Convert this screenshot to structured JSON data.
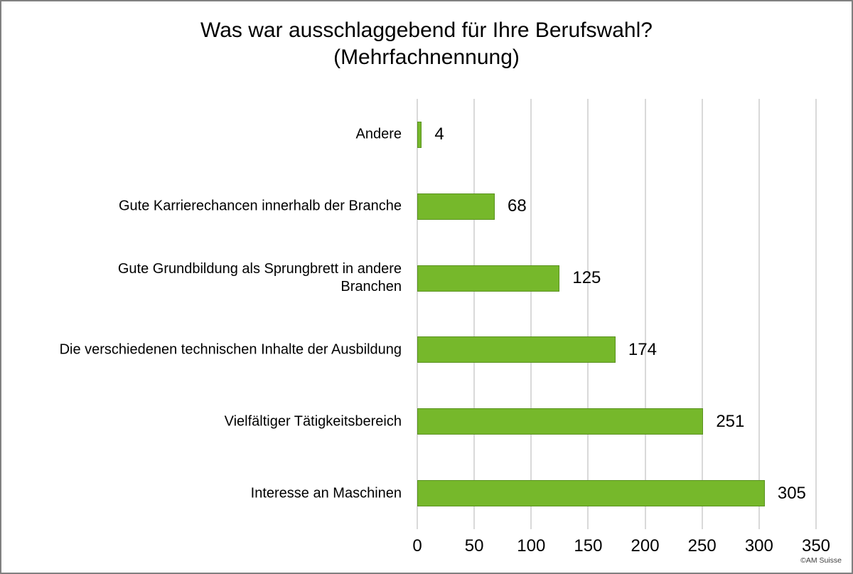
{
  "page": {
    "background": "#ffffff",
    "border_color": "#808080",
    "attribution": "©AM Suisse"
  },
  "chart_data": {
    "type": "bar",
    "orientation": "horizontal",
    "title": "Was war ausschlaggebend für Ihre Berufswahl?",
    "subtitle": "(Mehrfachnennung)",
    "categories": [
      "Andere",
      "Gute Karrierechancen innerhalb der Branche",
      "Gute Grundbildung als Sprungbrett in andere Branchen",
      "Die verschiedenen technischen Inhalte der Ausbildung",
      "Vielfältiger Tätigkeitsbereich",
      "Interesse an Maschinen"
    ],
    "category_lines": [
      [
        "Andere"
      ],
      [
        "Gute Karrierechancen innerhalb der Branche"
      ],
      [
        "Gute Grundbildung als Sprungbrett in andere",
        "Branchen"
      ],
      [
        "Die verschiedenen technischen Inhalte der Ausbildung"
      ],
      [
        "Vielfältiger Tätigkeitsbereich"
      ],
      [
        "Interesse an Maschinen"
      ]
    ],
    "values": [
      4,
      68,
      125,
      174,
      251,
      305
    ],
    "x_ticks": [
      0,
      50,
      100,
      150,
      200,
      250,
      300,
      350
    ],
    "xlim": [
      0,
      350
    ],
    "grid": true,
    "legend": false,
    "value_labels": true,
    "bar_color": "#76B82B",
    "bar_border_color": "#5A921F",
    "gridline_color": "#D9D9D9"
  }
}
